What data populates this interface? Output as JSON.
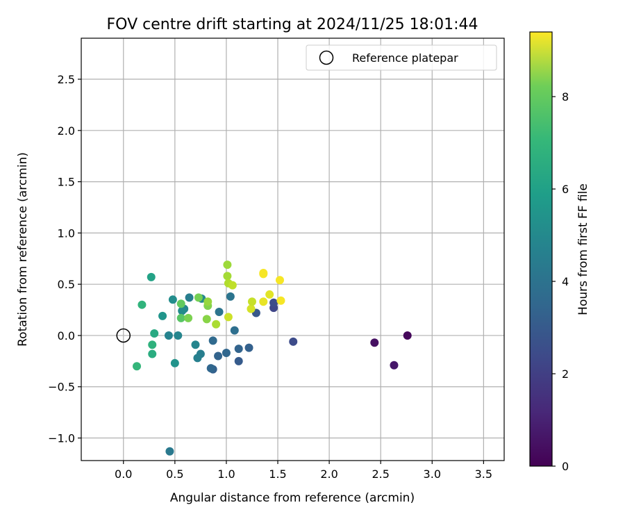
{
  "chart_data": {
    "type": "scatter",
    "title": "FOV centre drift starting at 2024/11/25 18:01:44",
    "xlabel": "Angular distance from reference (arcmin)",
    "ylabel": "Rotation from reference (arcmin)",
    "xlim": [
      -0.41,
      3.7
    ],
    "ylim": [
      -1.22,
      2.9
    ],
    "xticks": [
      0.0,
      0.5,
      1.0,
      1.5,
      2.0,
      2.5,
      3.0,
      3.5
    ],
    "xtick_labels": [
      "0.0",
      "0.5",
      "1.0",
      "1.5",
      "2.0",
      "2.5",
      "3.0",
      "3.5"
    ],
    "yticks": [
      -1.0,
      -0.5,
      0.0,
      0.5,
      1.0,
      1.5,
      2.0,
      2.5
    ],
    "ytick_labels": [
      "−1.0",
      "−0.5",
      "0.0",
      "0.5",
      "1.0",
      "1.5",
      "2.0",
      "2.5"
    ],
    "grid": true,
    "legend": {
      "placement": "top-right",
      "entries": [
        "Reference platepar"
      ]
    },
    "reference_point": {
      "name": "Reference platepar",
      "x": 0.0,
      "y": 0.0,
      "marker": "hollow-circle"
    },
    "colorbar": {
      "label": "Hours from first FF file",
      "colormap": "viridis",
      "range": [
        0,
        9.4
      ],
      "ticks": [
        0,
        2,
        4,
        6,
        8
      ],
      "tick_labels": [
        "0",
        "2",
        "4",
        "6",
        "8"
      ]
    },
    "points": [
      {
        "x": 2.76,
        "y": 0.0,
        "c": 0.2
      },
      {
        "x": 2.44,
        "y": -0.07,
        "c": 0.4
      },
      {
        "x": 2.63,
        "y": -0.29,
        "c": 0.6
      },
      {
        "x": 1.65,
        "y": -0.06,
        "c": 2.2
      },
      {
        "x": 1.46,
        "y": 0.27,
        "c": 2.0
      },
      {
        "x": 1.46,
        "y": 0.32,
        "c": 2.2
      },
      {
        "x": 1.29,
        "y": 0.22,
        "c": 2.6
      },
      {
        "x": 1.22,
        "y": -0.12,
        "c": 2.9
      },
      {
        "x": 1.12,
        "y": -0.13,
        "c": 3.0
      },
      {
        "x": 1.12,
        "y": -0.25,
        "c": 2.7
      },
      {
        "x": 1.08,
        "y": 0.05,
        "c": 3.4
      },
      {
        "x": 1.04,
        "y": 0.38,
        "c": 3.6
      },
      {
        "x": 1.0,
        "y": -0.17,
        "c": 3.1
      },
      {
        "x": 0.92,
        "y": -0.2,
        "c": 3.0
      },
      {
        "x": 0.87,
        "y": -0.33,
        "c": 2.9
      },
      {
        "x": 0.85,
        "y": -0.32,
        "c": 3.1
      },
      {
        "x": 0.87,
        "y": -0.05,
        "c": 3.2
      },
      {
        "x": 0.93,
        "y": 0.23,
        "c": 3.6
      },
      {
        "x": 0.75,
        "y": -0.18,
        "c": 4.0
      },
      {
        "x": 0.72,
        "y": -0.22,
        "c": 4.1
      },
      {
        "x": 0.7,
        "y": -0.09,
        "c": 4.3
      },
      {
        "x": 0.76,
        "y": 0.36,
        "c": 4.4
      },
      {
        "x": 0.64,
        "y": 0.37,
        "c": 4.0
      },
      {
        "x": 0.59,
        "y": 0.26,
        "c": 4.3
      },
      {
        "x": 0.57,
        "y": 0.24,
        "c": 4.5
      },
      {
        "x": 0.53,
        "y": 0.0,
        "c": 4.3
      },
      {
        "x": 0.44,
        "y": 0.0,
        "c": 4.2
      },
      {
        "x": 0.48,
        "y": 0.35,
        "c": 4.6
      },
      {
        "x": 0.38,
        "y": 0.19,
        "c": 4.9
      },
      {
        "x": 0.5,
        "y": -0.27,
        "c": 4.8
      },
      {
        "x": 0.45,
        "y": -1.13,
        "c": 3.8
      },
      {
        "x": 0.27,
        "y": 0.57,
        "c": 5.4
      },
      {
        "x": 0.18,
        "y": 0.3,
        "c": 6.1
      },
      {
        "x": 0.3,
        "y": 0.02,
        "c": 5.7
      },
      {
        "x": 0.28,
        "y": -0.09,
        "c": 6.0
      },
      {
        "x": 0.28,
        "y": -0.18,
        "c": 5.8
      },
      {
        "x": 0.13,
        "y": -0.3,
        "c": 6.2
      },
      {
        "x": 0.56,
        "y": 0.17,
        "c": 6.9
      },
      {
        "x": 0.56,
        "y": 0.31,
        "c": 7.1
      },
      {
        "x": 0.63,
        "y": 0.17,
        "c": 7.5
      },
      {
        "x": 0.73,
        "y": 0.37,
        "c": 7.4
      },
      {
        "x": 0.81,
        "y": 0.16,
        "c": 7.7
      },
      {
        "x": 0.82,
        "y": 0.29,
        "c": 7.6
      },
      {
        "x": 0.82,
        "y": 0.33,
        "c": 7.9
      },
      {
        "x": 0.9,
        "y": 0.11,
        "c": 8.2
      },
      {
        "x": 1.01,
        "y": 0.69,
        "c": 8.0
      },
      {
        "x": 1.01,
        "y": 0.58,
        "c": 8.1
      },
      {
        "x": 1.02,
        "y": 0.51,
        "c": 8.3
      },
      {
        "x": 1.06,
        "y": 0.49,
        "c": 8.5
      },
      {
        "x": 1.02,
        "y": 0.18,
        "c": 8.7
      },
      {
        "x": 1.24,
        "y": 0.26,
        "c": 8.8
      },
      {
        "x": 1.25,
        "y": 0.33,
        "c": 8.6
      },
      {
        "x": 1.36,
        "y": 0.6,
        "c": 9.3
      },
      {
        "x": 1.36,
        "y": 0.61,
        "c": 9.3
      },
      {
        "x": 1.36,
        "y": 0.33,
        "c": 9.1
      },
      {
        "x": 1.42,
        "y": 0.4,
        "c": 9.0
      },
      {
        "x": 1.52,
        "y": 0.54,
        "c": 9.3
      },
      {
        "x": 1.53,
        "y": 0.34,
        "c": 9.3
      }
    ]
  }
}
